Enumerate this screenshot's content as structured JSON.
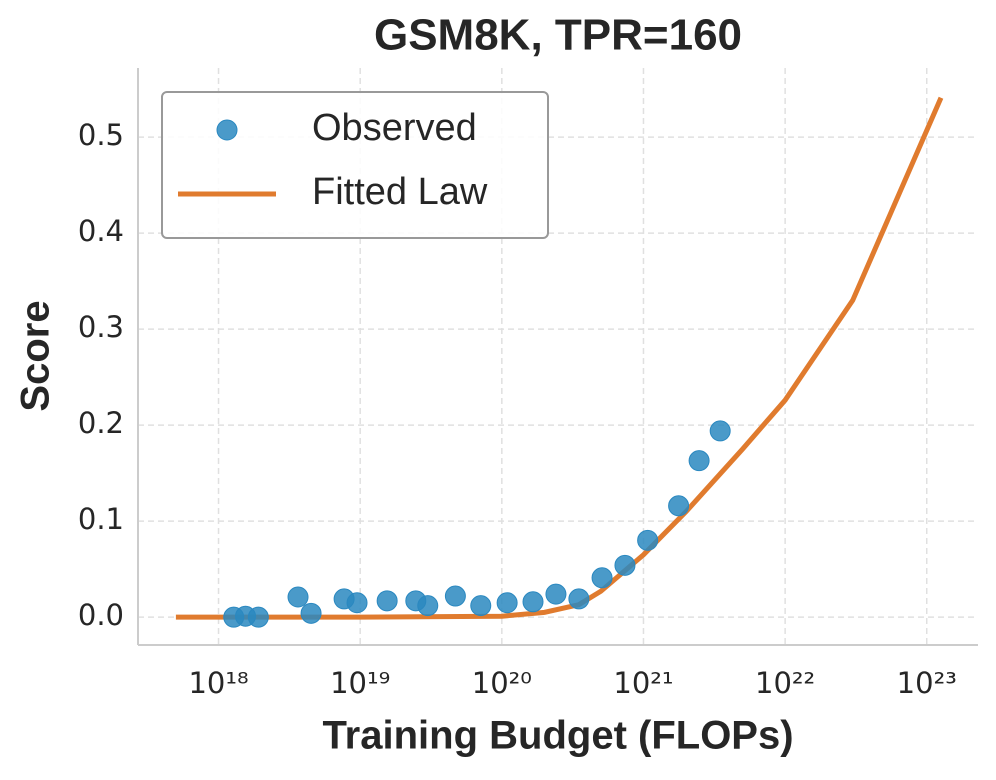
{
  "chart_data": {
    "type": "scatter",
    "title": "GSM8K, TPR=160",
    "x_label": "Training Budget (FLOPs)",
    "y_label": "Score",
    "xscale": "log",
    "grid": true,
    "legend": "upper left",
    "xlim": [
      2.7e+17,
      2.3e+23
    ],
    "ylim": [
      -0.029,
      0.572
    ],
    "xticks": [
      {
        "value": 1e+18,
        "label": "10¹⁸"
      },
      {
        "value": 1e+19,
        "label": "10¹⁹"
      },
      {
        "value": 1e+20,
        "label": "10²⁰"
      },
      {
        "value": 1e+21,
        "label": "10²¹"
      },
      {
        "value": 1e+22,
        "label": "10²²"
      },
      {
        "value": 1e+23,
        "label": "10²³"
      }
    ],
    "yticks": [
      {
        "value": 0,
        "label": "0.0"
      },
      0.1,
      0.2,
      0.3,
      0.4,
      0.5
    ],
    "series": [
      {
        "name": "Observed",
        "type": "scatter",
        "color": "#2a88c0",
        "x": [
          1.28e+18,
          1.55e+18,
          1.91e+18,
          3.64e+18,
          4.5e+18,
          7.7e+18,
          9.5e+18,
          1.55e+19,
          2.47e+19,
          3e+19,
          4.7e+19,
          7.1e+19,
          1.09e+20,
          1.66e+20,
          2.41e+20,
          3.5e+20,
          5.1e+20,
          7.4e+20,
          1.07e+21,
          1.77e+21,
          2.47e+21,
          3.48e+21
        ],
        "values": [
          0,
          0.001,
          0,
          0.021,
          0.004,
          0.019,
          0.015,
          0.017,
          0.017,
          0.012,
          0.022,
          0.012,
          0.015,
          0.016,
          0.024,
          0.019,
          0.041,
          0.054,
          0.08,
          0.116,
          0.163,
          0.194
        ]
      },
      {
        "name": "Fitted Law",
        "type": "line",
        "color": "#e07b2e",
        "x": [
          5e+17,
          1e+19,
          1e+20,
          2e+20,
          3.5e+20,
          5e+20,
          1e+21,
          2e+21,
          5e+21,
          1e+22,
          3e+22,
          1.26e+23
        ],
        "values": [
          0,
          0,
          0.001,
          0.005,
          0.013,
          0.027,
          0.065,
          0.11,
          0.175,
          0.226,
          0.33,
          0.541
        ]
      }
    ]
  }
}
